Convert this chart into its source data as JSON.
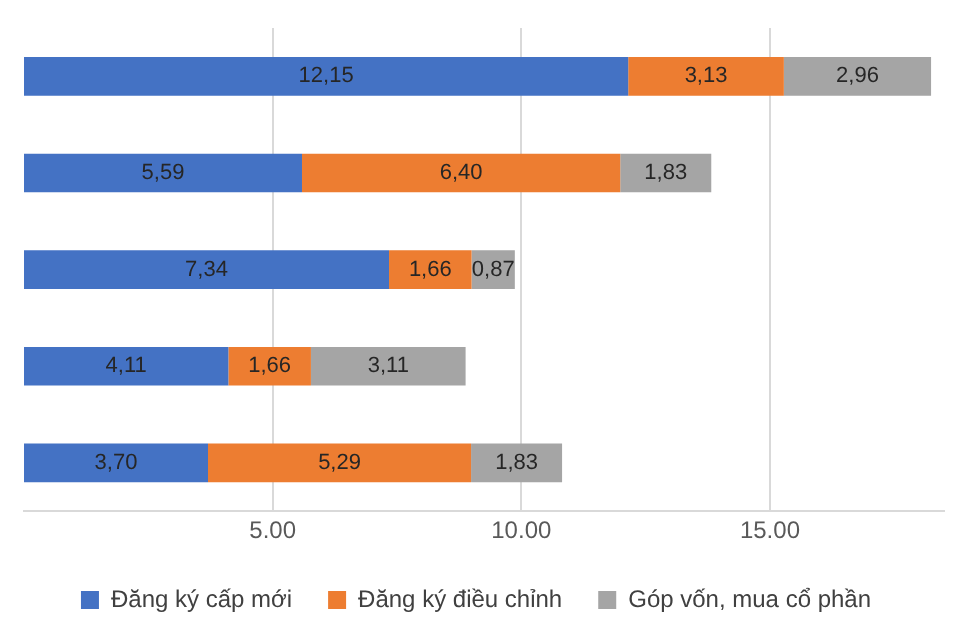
{
  "chart_data": {
    "type": "bar",
    "orientation": "horizontal",
    "stacked": true,
    "categories": [
      null,
      null,
      null,
      null,
      null
    ],
    "series": [
      {
        "name": "Đăng ký cấp mới",
        "color": "#4472c4",
        "values": [
          12.15,
          5.59,
          7.34,
          4.11,
          3.7
        ],
        "value_labels": [
          "12,15",
          "5,59",
          "7,34",
          "4,11",
          "3,70"
        ]
      },
      {
        "name": "Đăng ký điều chỉnh",
        "color": "#ed7d31",
        "values": [
          3.13,
          6.4,
          1.66,
          1.66,
          5.29
        ],
        "value_labels": [
          "3,13",
          "6,40",
          "1,66",
          "1,66",
          "5,29"
        ]
      },
      {
        "name": "Góp vốn, mua cổ phần",
        "color": "#a5a5a5",
        "values": [
          2.96,
          1.83,
          0.87,
          3.11,
          1.83
        ],
        "value_labels": [
          "2,96",
          "1,83",
          "0,87",
          "3,11",
          "1,83"
        ]
      }
    ],
    "xlim": [
      0,
      18.5
    ],
    "xticks": [
      {
        "value": 5,
        "label": "5.00"
      },
      {
        "value": 10,
        "label": "10.00"
      },
      {
        "value": 15,
        "label": "15.00"
      }
    ],
    "tick_labels": "x",
    "grid": "x",
    "legend": "bottom"
  }
}
